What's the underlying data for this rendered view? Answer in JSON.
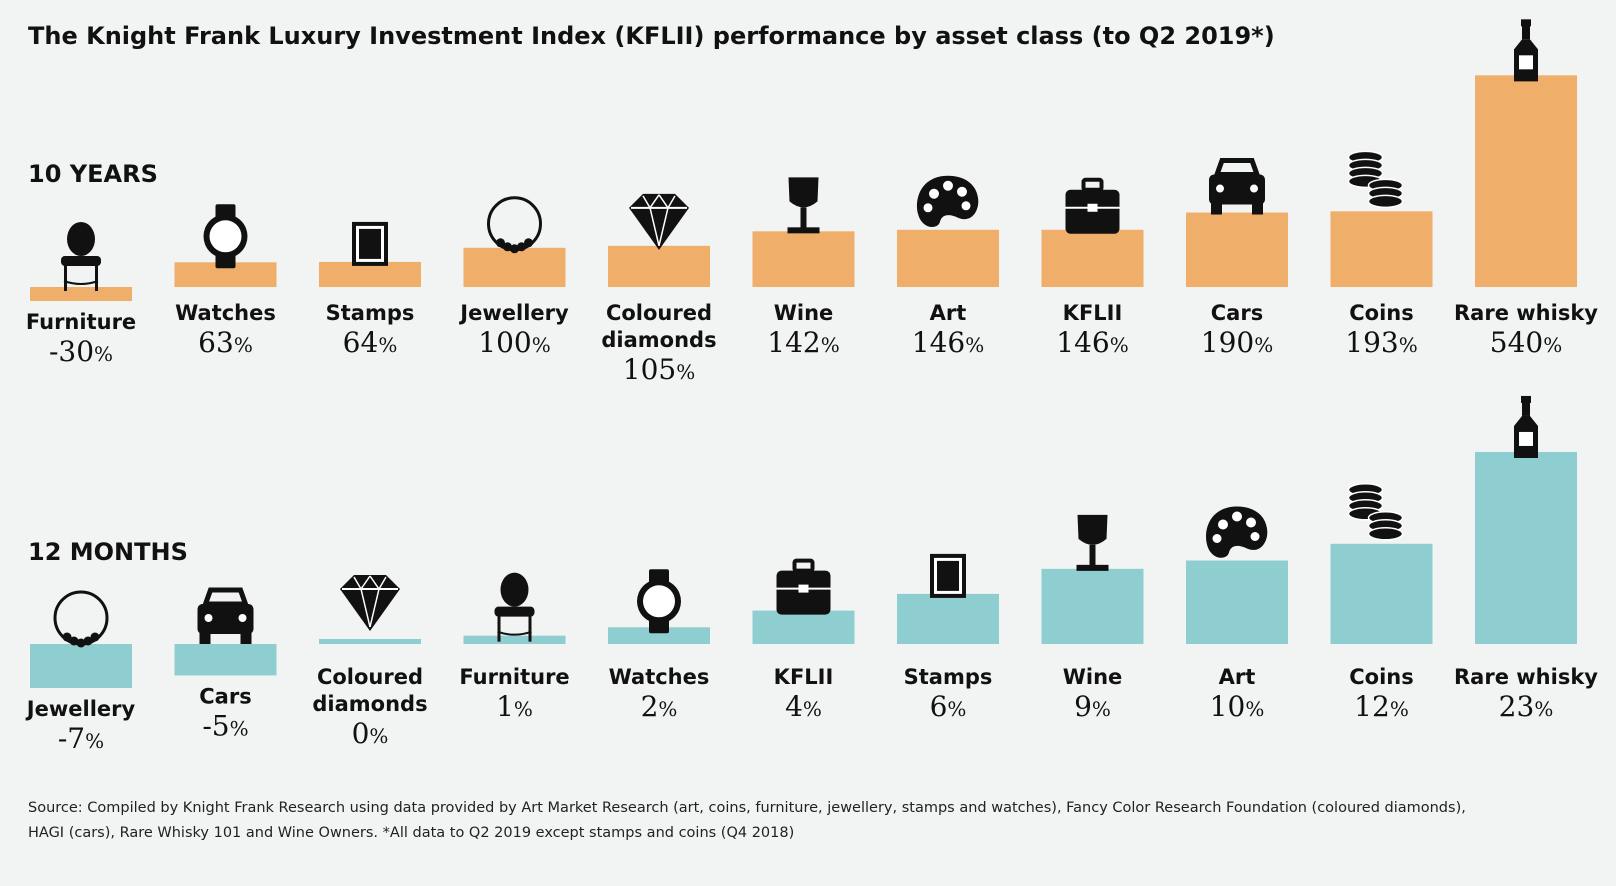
{
  "chart_data": {
    "type": "bar",
    "title": "The Knight Frank Luxury Investment Index (KFLII) performance by asset class (to Q2 2019*)",
    "unit": "%",
    "panels": [
      {
        "label": "10 YEARS",
        "color": "#efae69",
        "categories": [
          {
            "lines": [
              "Furniture"
            ],
            "value": -30,
            "icon": "chair-icon"
          },
          {
            "lines": [
              "Watches"
            ],
            "value": 63,
            "icon": "watch-icon"
          },
          {
            "lines": [
              "Stamps"
            ],
            "value": 64,
            "icon": "stamp-icon"
          },
          {
            "lines": [
              "Jewellery"
            ],
            "value": 100,
            "icon": "necklace-icon"
          },
          {
            "lines": [
              "Coloured",
              "diamonds"
            ],
            "value": 105,
            "icon": "diamond-icon"
          },
          {
            "lines": [
              "Wine"
            ],
            "value": 142,
            "icon": "wine-glass-icon"
          },
          {
            "lines": [
              "Art"
            ],
            "value": 146,
            "icon": "palette-icon"
          },
          {
            "lines": [
              "KFLII"
            ],
            "value": 146,
            "icon": "briefcase-icon"
          },
          {
            "lines": [
              "Cars"
            ],
            "value": 190,
            "icon": "car-icon"
          },
          {
            "lines": [
              "Coins"
            ],
            "value": 193,
            "icon": "coins-icon"
          },
          {
            "lines": [
              "Rare whisky"
            ],
            "value": 540,
            "icon": "bottle-icon"
          }
        ]
      },
      {
        "label": "12 MONTHS",
        "color": "#8ecdd0",
        "categories": [
          {
            "lines": [
              "Jewellery"
            ],
            "value": -7,
            "icon": "necklace-icon"
          },
          {
            "lines": [
              "Cars"
            ],
            "value": -5,
            "icon": "car-icon"
          },
          {
            "lines": [
              "Coloured",
              "diamonds"
            ],
            "value": 0,
            "icon": "diamond-icon"
          },
          {
            "lines": [
              "Furniture"
            ],
            "value": 1,
            "icon": "chair-icon"
          },
          {
            "lines": [
              "Watches"
            ],
            "value": 2,
            "icon": "watch-icon"
          },
          {
            "lines": [
              "KFLII"
            ],
            "value": 4,
            "icon": "briefcase-icon"
          },
          {
            "lines": [
              "Stamps"
            ],
            "value": 6,
            "icon": "stamp-icon"
          },
          {
            "lines": [
              "Wine"
            ],
            "value": 9,
            "icon": "wine-glass-icon"
          },
          {
            "lines": [
              "Art"
            ],
            "value": 10,
            "icon": "palette-icon"
          },
          {
            "lines": [
              "Coins"
            ],
            "value": 12,
            "icon": "coins-icon"
          },
          {
            "lines": [
              "Rare whisky"
            ],
            "value": 23,
            "icon": "bottle-icon"
          }
        ]
      }
    ],
    "source_lines": [
      "Source: Compiled by Knight Frank Research using data provided by Art Market Research (art, coins, furniture, jewellery, stamps and watches), Fancy Color Research Foundation (coloured diamonds),",
      "HAGI (cars), Rare Whisky 101 and Wine Owners. *All data to Q2 2019 except stamps and coins (Q4 2018)"
    ]
  }
}
